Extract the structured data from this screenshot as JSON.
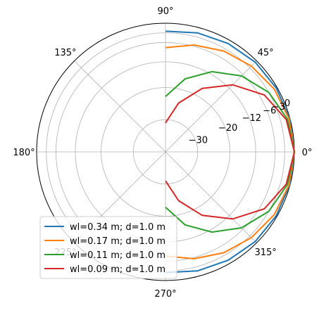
{
  "chart_data": {
    "type": "polar-line",
    "title": "",
    "angular_ticks": [
      "0°",
      "45°",
      "90°",
      "135°",
      "180°",
      "225°",
      "270°",
      "315°"
    ],
    "radial_ticks": [
      "−30",
      "−20",
      "−12",
      "−6",
      "−3",
      "0"
    ],
    "radial_tick_values": [
      -30,
      -20,
      -12,
      -6,
      -3,
      0
    ],
    "radial_range_db": [
      -40,
      0
    ],
    "legend_position": "lower-left",
    "grid": true,
    "series": [
      {
        "name": "wl=0.34 m; d=1.0 m",
        "color": "#1f77b4",
        "theta_deg": [
          0,
          15,
          30,
          45,
          60,
          75,
          90,
          105,
          120,
          135,
          150,
          165,
          180,
          195,
          210,
          225,
          240,
          255,
          270,
          285,
          300,
          315,
          330,
          345,
          360
        ],
        "r_db": [
          0,
          -0.1,
          -0.3,
          -0.6,
          -1.1,
          -1.7,
          -2.5,
          null,
          null,
          null,
          null,
          null,
          null,
          null,
          null,
          null,
          null,
          null,
          -2.5,
          -1.7,
          -1.1,
          -0.6,
          -0.3,
          -0.1,
          0
        ]
      },
      {
        "name": "wl=0.17 m; d=1.0 m",
        "color": "#ff7f0e",
        "theta_deg": [
          0,
          15,
          30,
          45,
          60,
          75,
          90,
          105,
          120,
          135,
          150,
          165,
          180,
          195,
          210,
          225,
          240,
          255,
          270,
          285,
          300,
          315,
          330,
          345,
          360
        ],
        "r_db": [
          0,
          -0.3,
          -1.0,
          -2.3,
          -3.8,
          -5.6,
          -7.6,
          null,
          null,
          null,
          null,
          null,
          null,
          null,
          null,
          null,
          null,
          null,
          -7.6,
          -5.6,
          -3.8,
          -2.3,
          -1.0,
          -0.3,
          0
        ]
      },
      {
        "name": "wl=0.11 m; d=1.0 m",
        "color": "#2ca02c",
        "theta_deg": [
          0,
          15,
          30,
          45,
          60,
          75,
          90,
          105,
          120,
          135,
          150,
          165,
          180,
          195,
          210,
          225,
          240,
          255,
          270,
          285,
          300,
          315,
          330,
          345,
          360
        ],
        "r_db": [
          0,
          -0.8,
          -3.0,
          -6.6,
          -11.2,
          -16.5,
          -22.8,
          null,
          null,
          null,
          null,
          null,
          null,
          null,
          null,
          null,
          null,
          null,
          -22.8,
          -16.5,
          -11.2,
          -6.6,
          -3.0,
          -0.8,
          0
        ]
      },
      {
        "name": "wl=0.09 m; d=1.0 m",
        "color": "#d62728",
        "theta_deg": [
          0,
          15,
          30,
          45,
          60,
          75,
          90,
          105,
          120,
          135,
          150,
          165,
          180,
          195,
          210,
          225,
          240,
          255,
          270,
          285,
          300,
          315,
          330,
          345,
          360
        ],
        "r_db": [
          0,
          -1.2,
          -4.6,
          -10.5,
          -17.2,
          -24.3,
          -31.0,
          null,
          null,
          null,
          null,
          null,
          null,
          null,
          null,
          null,
          null,
          null,
          -31.0,
          -24.3,
          -17.2,
          -10.5,
          -4.6,
          -1.2,
          0
        ]
      }
    ]
  }
}
